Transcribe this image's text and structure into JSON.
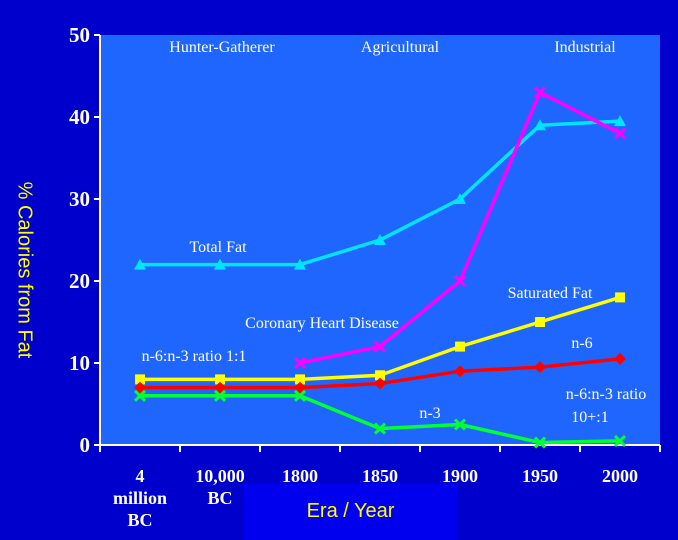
{
  "chart_data": {
    "type": "line",
    "title": "",
    "xlabel": "Era / Year",
    "ylabel": "% Calories from Fat",
    "ylim": [
      0,
      50
    ],
    "yticks": [
      "0",
      "10",
      "20",
      "30",
      "40",
      "50"
    ],
    "grid": false,
    "categories": [
      [
        "4",
        "million",
        "BC"
      ],
      [
        "10,000",
        "BC"
      ],
      [
        "1800"
      ],
      [
        "1850"
      ],
      [
        "1900"
      ],
      [
        "1950"
      ],
      [
        "2000"
      ]
    ],
    "series": [
      {
        "name": "Total Fat",
        "color": "#00e5ff",
        "marker": "triangle",
        "values": [
          22,
          22,
          22,
          25,
          30,
          39,
          39.5
        ]
      },
      {
        "name": "Coronary Heart Disease",
        "color": "#ff00ff",
        "marker": "x",
        "values": [
          null,
          null,
          10,
          12,
          20,
          43,
          38
        ]
      },
      {
        "name": "Saturated Fat",
        "color": "#ffff00",
        "marker": "square",
        "values": [
          8,
          8,
          8,
          8.5,
          12,
          15,
          18
        ]
      },
      {
        "name": "n-6",
        "color": "#ff0000",
        "marker": "diamond",
        "values": [
          7,
          7,
          7,
          7.5,
          9,
          9.5,
          10.5
        ]
      },
      {
        "name": "n-3",
        "color": "#00ff33",
        "marker": "x",
        "values": [
          6,
          6,
          6,
          2,
          2.5,
          0.3,
          0.5
        ]
      }
    ],
    "era_labels": [
      "Hunter-Gatherer",
      "Agricultural",
      "Industrial"
    ],
    "annotations": [
      "n-6:n-3 ratio 1:1",
      "n-6:n-3 ratio",
      "10+:1"
    ]
  }
}
